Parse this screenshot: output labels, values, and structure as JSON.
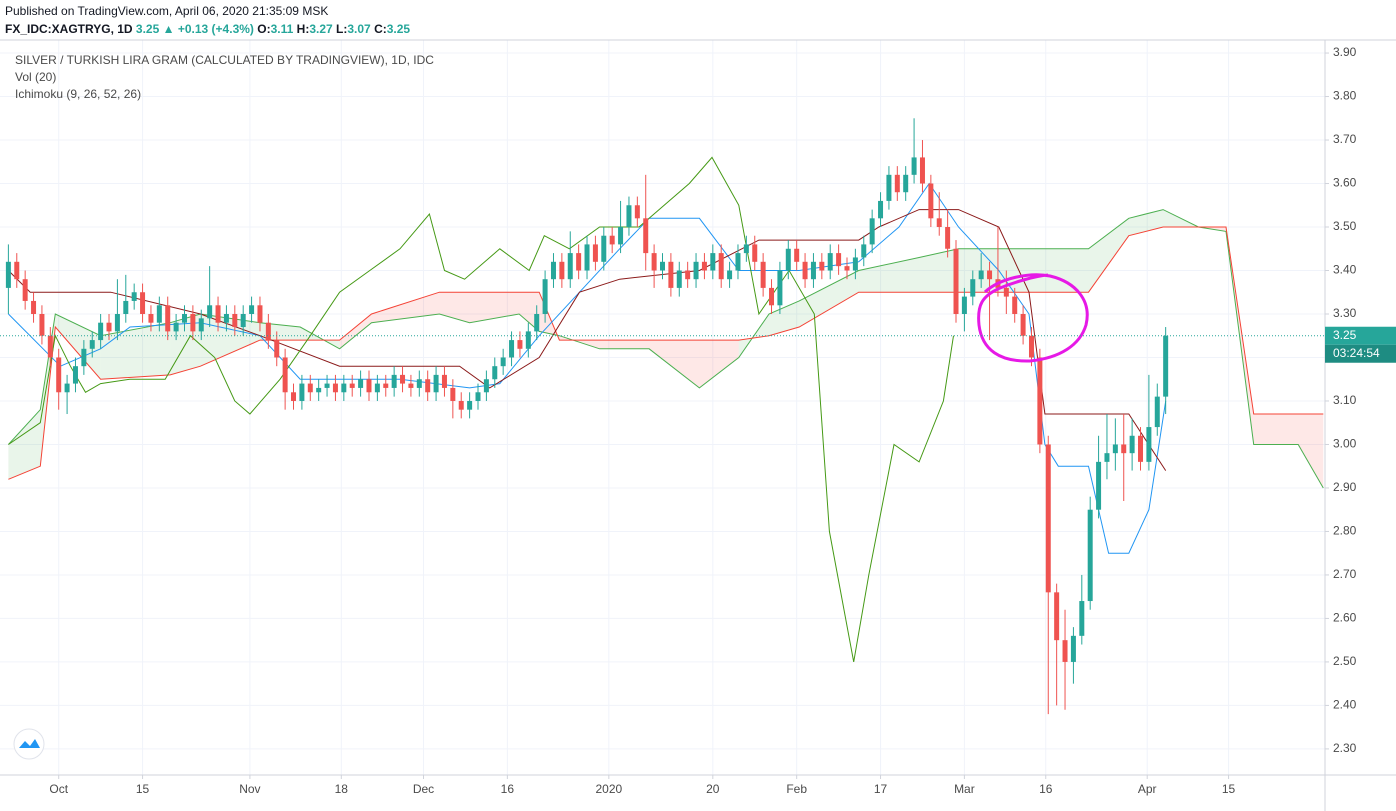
{
  "header": {
    "published": "Published on TradingView.com, April 06, 2020 21:35:09 MSK",
    "symbol": "FX_IDC:XAGTRYG, 1D",
    "last": 3.25,
    "arrow": "▲",
    "change": "+0.13 (+4.3%)",
    "o_label": "O:",
    "open": 3.11,
    "h_label": "H:",
    "high": 3.27,
    "l_label": "L:",
    "low": 3.07,
    "c_label": "C:",
    "close": 3.25
  },
  "chart_data": {
    "type": "candlestick",
    "legend": [
      "SILVER / TURKISH LIRA GRAM (CALCULATED BY TRADINGVIEW), 1D, IDC",
      "Vol (20)",
      "Ichimoku (9, 26, 52, 26)"
    ],
    "up_color": "#26a69a",
    "down_color": "#ef5350",
    "candles": [
      [
        3.36,
        3.46,
        3.3,
        3.42
      ],
      [
        3.42,
        3.44,
        3.36,
        3.38
      ],
      [
        3.38,
        3.4,
        3.31,
        3.33
      ],
      [
        3.33,
        3.35,
        3.28,
        3.3
      ],
      [
        3.3,
        3.32,
        3.23,
        3.25
      ],
      [
        3.25,
        3.27,
        3.18,
        3.2
      ],
      [
        3.2,
        3.22,
        3.08,
        3.12
      ],
      [
        3.12,
        3.16,
        3.07,
        3.14
      ],
      [
        3.14,
        3.2,
        3.12,
        3.18
      ],
      [
        3.18,
        3.24,
        3.16,
        3.22
      ],
      [
        3.22,
        3.26,
        3.2,
        3.24
      ],
      [
        3.24,
        3.3,
        3.22,
        3.28
      ],
      [
        3.28,
        3.3,
        3.24,
        3.26
      ],
      [
        3.26,
        3.38,
        3.24,
        3.3
      ],
      [
        3.3,
        3.39,
        3.28,
        3.33
      ],
      [
        3.33,
        3.37,
        3.31,
        3.35
      ],
      [
        3.35,
        3.37,
        3.28,
        3.3
      ],
      [
        3.3,
        3.32,
        3.26,
        3.28
      ],
      [
        3.28,
        3.34,
        3.26,
        3.32
      ],
      [
        3.32,
        3.34,
        3.24,
        3.26
      ],
      [
        3.26,
        3.3,
        3.24,
        3.28
      ],
      [
        3.28,
        3.32,
        3.26,
        3.3
      ],
      [
        3.3,
        3.32,
        3.24,
        3.26
      ],
      [
        3.26,
        3.31,
        3.24,
        3.29
      ],
      [
        3.29,
        3.41,
        3.27,
        3.32
      ],
      [
        3.32,
        3.34,
        3.26,
        3.28
      ],
      [
        3.28,
        3.32,
        3.26,
        3.3
      ],
      [
        3.3,
        3.32,
        3.25,
        3.27
      ],
      [
        3.27,
        3.32,
        3.25,
        3.3
      ],
      [
        3.3,
        3.34,
        3.28,
        3.32
      ],
      [
        3.32,
        3.34,
        3.26,
        3.28
      ],
      [
        3.28,
        3.3,
        3.22,
        3.24
      ],
      [
        3.24,
        3.26,
        3.18,
        3.2
      ],
      [
        3.2,
        3.22,
        3.08,
        3.12
      ],
      [
        3.12,
        3.14,
        3.08,
        3.1
      ],
      [
        3.1,
        3.16,
        3.08,
        3.14
      ],
      [
        3.14,
        3.16,
        3.1,
        3.12
      ],
      [
        3.12,
        3.15,
        3.1,
        3.13
      ],
      [
        3.13,
        3.16,
        3.11,
        3.14
      ],
      [
        3.14,
        3.16,
        3.1,
        3.12
      ],
      [
        3.12,
        3.16,
        3.1,
        3.14
      ],
      [
        3.14,
        3.16,
        3.11,
        3.13
      ],
      [
        3.13,
        3.17,
        3.11,
        3.15
      ],
      [
        3.15,
        3.17,
        3.1,
        3.12
      ],
      [
        3.12,
        3.16,
        3.1,
        3.14
      ],
      [
        3.14,
        3.16,
        3.11,
        3.13
      ],
      [
        3.13,
        3.18,
        3.11,
        3.16
      ],
      [
        3.16,
        3.18,
        3.12,
        3.14
      ],
      [
        3.14,
        3.16,
        3.11,
        3.13
      ],
      [
        3.13,
        3.17,
        3.11,
        3.15
      ],
      [
        3.15,
        3.17,
        3.1,
        3.12
      ],
      [
        3.12,
        3.18,
        3.1,
        3.16
      ],
      [
        3.16,
        3.18,
        3.11,
        3.13
      ],
      [
        3.13,
        3.15,
        3.06,
        3.1
      ],
      [
        3.1,
        3.12,
        3.06,
        3.08
      ],
      [
        3.08,
        3.12,
        3.06,
        3.1
      ],
      [
        3.1,
        3.14,
        3.08,
        3.12
      ],
      [
        3.12,
        3.17,
        3.1,
        3.15
      ],
      [
        3.15,
        3.2,
        3.13,
        3.18
      ],
      [
        3.18,
        3.22,
        3.16,
        3.2
      ],
      [
        3.2,
        3.26,
        3.18,
        3.24
      ],
      [
        3.24,
        3.26,
        3.2,
        3.22
      ],
      [
        3.22,
        3.28,
        3.2,
        3.26
      ],
      [
        3.26,
        3.32,
        3.24,
        3.3
      ],
      [
        3.3,
        3.4,
        3.28,
        3.38
      ],
      [
        3.38,
        3.44,
        3.36,
        3.42
      ],
      [
        3.42,
        3.44,
        3.36,
        3.38
      ],
      [
        3.38,
        3.49,
        3.36,
        3.44
      ],
      [
        3.44,
        3.46,
        3.38,
        3.4
      ],
      [
        3.4,
        3.48,
        3.38,
        3.46
      ],
      [
        3.46,
        3.48,
        3.4,
        3.42
      ],
      [
        3.42,
        3.5,
        3.4,
        3.48
      ],
      [
        3.48,
        3.5,
        3.44,
        3.46
      ],
      [
        3.46,
        3.56,
        3.44,
        3.5
      ],
      [
        3.5,
        3.57,
        3.48,
        3.55
      ],
      [
        3.55,
        3.57,
        3.5,
        3.52
      ],
      [
        3.52,
        3.62,
        3.4,
        3.44
      ],
      [
        3.44,
        3.46,
        3.36,
        3.4
      ],
      [
        3.4,
        3.44,
        3.38,
        3.42
      ],
      [
        3.42,
        3.44,
        3.34,
        3.36
      ],
      [
        3.36,
        3.42,
        3.34,
        3.4
      ],
      [
        3.4,
        3.42,
        3.36,
        3.38
      ],
      [
        3.38,
        3.44,
        3.36,
        3.42
      ],
      [
        3.42,
        3.44,
        3.38,
        3.4
      ],
      [
        3.4,
        3.46,
        3.38,
        3.44
      ],
      [
        3.44,
        3.46,
        3.36,
        3.38
      ],
      [
        3.38,
        3.42,
        3.36,
        3.4
      ],
      [
        3.4,
        3.46,
        3.38,
        3.44
      ],
      [
        3.44,
        3.48,
        3.42,
        3.46
      ],
      [
        3.46,
        3.48,
        3.4,
        3.42
      ],
      [
        3.42,
        3.44,
        3.34,
        3.36
      ],
      [
        3.36,
        3.38,
        3.3,
        3.32
      ],
      [
        3.32,
        3.42,
        3.3,
        3.4
      ],
      [
        3.4,
        3.47,
        3.38,
        3.45
      ],
      [
        3.45,
        3.47,
        3.4,
        3.42
      ],
      [
        3.42,
        3.44,
        3.36,
        3.38
      ],
      [
        3.38,
        3.44,
        3.36,
        3.42
      ],
      [
        3.42,
        3.44,
        3.38,
        3.4
      ],
      [
        3.4,
        3.46,
        3.38,
        3.44
      ],
      [
        3.44,
        3.46,
        3.39,
        3.41
      ],
      [
        3.41,
        3.43,
        3.38,
        3.4
      ],
      [
        3.4,
        3.45,
        3.38,
        3.43
      ],
      [
        3.43,
        3.48,
        3.41,
        3.46
      ],
      [
        3.46,
        3.54,
        3.44,
        3.52
      ],
      [
        3.52,
        3.58,
        3.5,
        3.56
      ],
      [
        3.56,
        3.64,
        3.54,
        3.62
      ],
      [
        3.62,
        3.64,
        3.56,
        3.58
      ],
      [
        3.58,
        3.64,
        3.56,
        3.62
      ],
      [
        3.62,
        3.75,
        3.6,
        3.66
      ],
      [
        3.66,
        3.7,
        3.58,
        3.6
      ],
      [
        3.6,
        3.62,
        3.5,
        3.52
      ],
      [
        3.52,
        3.58,
        3.48,
        3.5
      ],
      [
        3.5,
        3.54,
        3.43,
        3.45
      ],
      [
        3.45,
        3.47,
        3.28,
        3.3
      ],
      [
        3.3,
        3.36,
        3.26,
        3.34
      ],
      [
        3.34,
        3.4,
        3.32,
        3.38
      ],
      [
        3.38,
        3.44,
        3.36,
        3.4
      ],
      [
        3.4,
        3.42,
        3.24,
        3.38
      ],
      [
        3.38,
        3.5,
        3.34,
        3.36
      ],
      [
        3.36,
        3.4,
        3.3,
        3.34
      ],
      [
        3.34,
        3.36,
        3.28,
        3.3
      ],
      [
        3.3,
        3.32,
        3.23,
        3.25
      ],
      [
        3.25,
        3.27,
        3.18,
        3.2
      ],
      [
        3.2,
        3.22,
        2.98,
        3.0
      ],
      [
        3.0,
        3.02,
        2.38,
        2.66
      ],
      [
        2.66,
        2.68,
        2.4,
        2.55
      ],
      [
        2.55,
        2.62,
        2.39,
        2.5
      ],
      [
        2.5,
        2.58,
        2.45,
        2.56
      ],
      [
        2.56,
        2.7,
        2.54,
        2.64
      ],
      [
        2.64,
        2.88,
        2.62,
        2.85
      ],
      [
        2.85,
        3.02,
        2.83,
        2.96
      ],
      [
        2.96,
        3.07,
        2.92,
        2.98
      ],
      [
        2.98,
        3.06,
        2.94,
        3.0
      ],
      [
        3.0,
        3.07,
        2.87,
        2.98
      ],
      [
        2.98,
        3.06,
        2.94,
        3.02
      ],
      [
        3.02,
        3.04,
        2.94,
        2.96
      ],
      [
        2.96,
        3.16,
        2.94,
        3.04
      ],
      [
        3.04,
        3.14,
        3.02,
        3.11
      ],
      [
        3.11,
        3.27,
        3.07,
        3.25
      ]
    ],
    "lines": [
      {
        "color": "#2196f3",
        "x": [
          0,
          6.2,
          11,
          14.5,
          22.9,
          30,
          34.8,
          39.5,
          46.7,
          55,
          58.6,
          63.3,
          68.1,
          72.9,
          76.4,
          82.4,
          87.1,
          94.3,
          101.4,
          106.2,
          109.8,
          113.3,
          118.1,
          121.7,
          123.6,
          125.2,
          128.8,
          131.2,
          133.6,
          136,
          138
        ],
        "values": [
          3.3,
          3.18,
          3.22,
          3.27,
          3.28,
          3.25,
          3.15,
          3.15,
          3.15,
          3.13,
          3.14,
          3.25,
          3.35,
          3.45,
          3.52,
          3.52,
          3.4,
          3.4,
          3.42,
          3.5,
          3.6,
          3.5,
          3.4,
          3.3,
          3.0,
          2.95,
          2.95,
          2.75,
          2.75,
          2.85,
          3.1
        ]
      },
      {
        "color": "#8b1a1a",
        "x": [
          0,
          2.6,
          12.2,
          22.9,
          30,
          39.5,
          53.8,
          57.4,
          63.3,
          68.1,
          72.9,
          82.4,
          89.5,
          101.4,
          103.8,
          108.6,
          113.3,
          118.1,
          121.7,
          123.6,
          133.6,
          138
        ],
        "values": [
          3.4,
          3.35,
          3.35,
          3.3,
          3.25,
          3.18,
          3.18,
          3.13,
          3.2,
          3.35,
          3.38,
          3.4,
          3.47,
          3.47,
          3.5,
          3.54,
          3.54,
          3.5,
          3.35,
          3.07,
          3.07,
          2.94
        ]
      },
      {
        "color": "#459915",
        "x": [
          0,
          3.8,
          5.6,
          7.4,
          9.2,
          11,
          14.5,
          18.7,
          21.7,
          24.6,
          27,
          28.8,
          32.4,
          36,
          39.5,
          43.1,
          46.7,
          50.2,
          52,
          54.4,
          58.6,
          62.1,
          63.9,
          66.9,
          70.5,
          75.2,
          81.2,
          83.9,
          87.1,
          89.5,
          93.1,
          96.1,
          97.9,
          100.8,
          102.6,
          105.6,
          108.6,
          111.5,
          112.7
        ],
        "values": [
          3.0,
          3.05,
          3.25,
          3.18,
          3.12,
          3.14,
          3.15,
          3.15,
          3.25,
          3.2,
          3.1,
          3.07,
          3.15,
          3.25,
          3.35,
          3.4,
          3.45,
          3.53,
          3.4,
          3.38,
          3.45,
          3.4,
          3.48,
          3.45,
          3.5,
          3.5,
          3.6,
          3.66,
          3.55,
          3.3,
          3.4,
          3.3,
          2.8,
          2.5,
          2.7,
          3.0,
          2.96,
          3.1,
          3.25
        ]
      }
    ],
    "cloud": {
      "x": [
        0,
        3.8,
        5.6,
        11,
        19.3,
        22.9,
        30,
        34.8,
        39.5,
        43.3,
        51.4,
        55,
        60.9,
        63.3,
        65.7,
        70.5,
        76.4,
        82.4,
        87.1,
        90.7,
        94.3,
        101.4,
        108.6,
        113.3,
        122.9,
        128.8,
        133.6,
        137.7,
        141.9,
        145.2,
        148.5,
        153.8,
        156.8
      ],
      "span_a": {
        "color": "#4caf50",
        "values": [
          3.0,
          3.08,
          3.3,
          3.25,
          3.28,
          3.3,
          3.28,
          3.27,
          3.22,
          3.28,
          3.3,
          3.28,
          3.3,
          3.26,
          3.25,
          3.22,
          3.22,
          3.13,
          3.2,
          3.3,
          3.33,
          3.4,
          3.43,
          3.45,
          3.45,
          3.45,
          3.52,
          3.54,
          3.5,
          3.49,
          3.0,
          3.0,
          2.9
        ]
      },
      "span_b": {
        "color": "#f44336",
        "values": [
          2.92,
          2.95,
          3.27,
          3.15,
          3.16,
          3.18,
          3.24,
          3.24,
          3.24,
          3.3,
          3.35,
          3.35,
          3.35,
          3.35,
          3.24,
          3.24,
          3.24,
          3.24,
          3.24,
          3.25,
          3.27,
          3.35,
          3.35,
          3.35,
          3.35,
          3.35,
          3.48,
          3.5,
          3.5,
          3.5,
          3.07,
          3.07,
          3.07
        ]
      },
      "up_fill": "rgba(76,175,80,0.12)",
      "down_fill": "rgba(244,67,54,0.12)"
    },
    "xlim": [
      -1,
      157
    ],
    "xticks": [
      {
        "value": 6,
        "label": "Oct"
      },
      {
        "value": 16,
        "label": "15"
      },
      {
        "value": 28.8,
        "label": "Nov"
      },
      {
        "value": 39.7,
        "label": "18"
      },
      {
        "value": 49.5,
        "label": "Dec"
      },
      {
        "value": 59.5,
        "label": "16"
      },
      {
        "value": 71.6,
        "label": "2020"
      },
      {
        "value": 84,
        "label": "20"
      },
      {
        "value": 94,
        "label": "Feb"
      },
      {
        "value": 104,
        "label": "17"
      },
      {
        "value": 114,
        "label": "Mar"
      },
      {
        "value": 123.7,
        "label": "16"
      },
      {
        "value": 135.8,
        "label": "Apr"
      },
      {
        "value": 145.5,
        "label": "15"
      }
    ],
    "ylim": [
      2.24,
      3.93
    ],
    "yticks": [
      {
        "value": 2.3,
        "label": "2.30"
      },
      {
        "value": 2.4,
        "label": "2.40"
      },
      {
        "value": 2.5,
        "label": "2.50"
      },
      {
        "value": 2.6,
        "label": "2.60"
      },
      {
        "value": 2.7,
        "label": "2.70"
      },
      {
        "value": 2.8,
        "label": "2.80"
      },
      {
        "value": 2.9,
        "label": "2.90"
      },
      {
        "value": 3.0,
        "label": "3.00"
      },
      {
        "value": 3.1,
        "label": "3.10"
      },
      {
        "value": 3.2,
        "label": "3.20"
      },
      {
        "value": 3.3,
        "label": "3.30"
      },
      {
        "value": 3.4,
        "label": "3.40"
      },
      {
        "value": 3.5,
        "label": "3.50"
      },
      {
        "value": 3.6,
        "label": "3.60"
      },
      {
        "value": 3.7,
        "label": "3.70"
      },
      {
        "value": 3.8,
        "label": "3.80"
      },
      {
        "value": 3.9,
        "label": "3.90"
      }
    ],
    "grid": true,
    "last_price": 3.25,
    "countdown": "03:24:54"
  }
}
